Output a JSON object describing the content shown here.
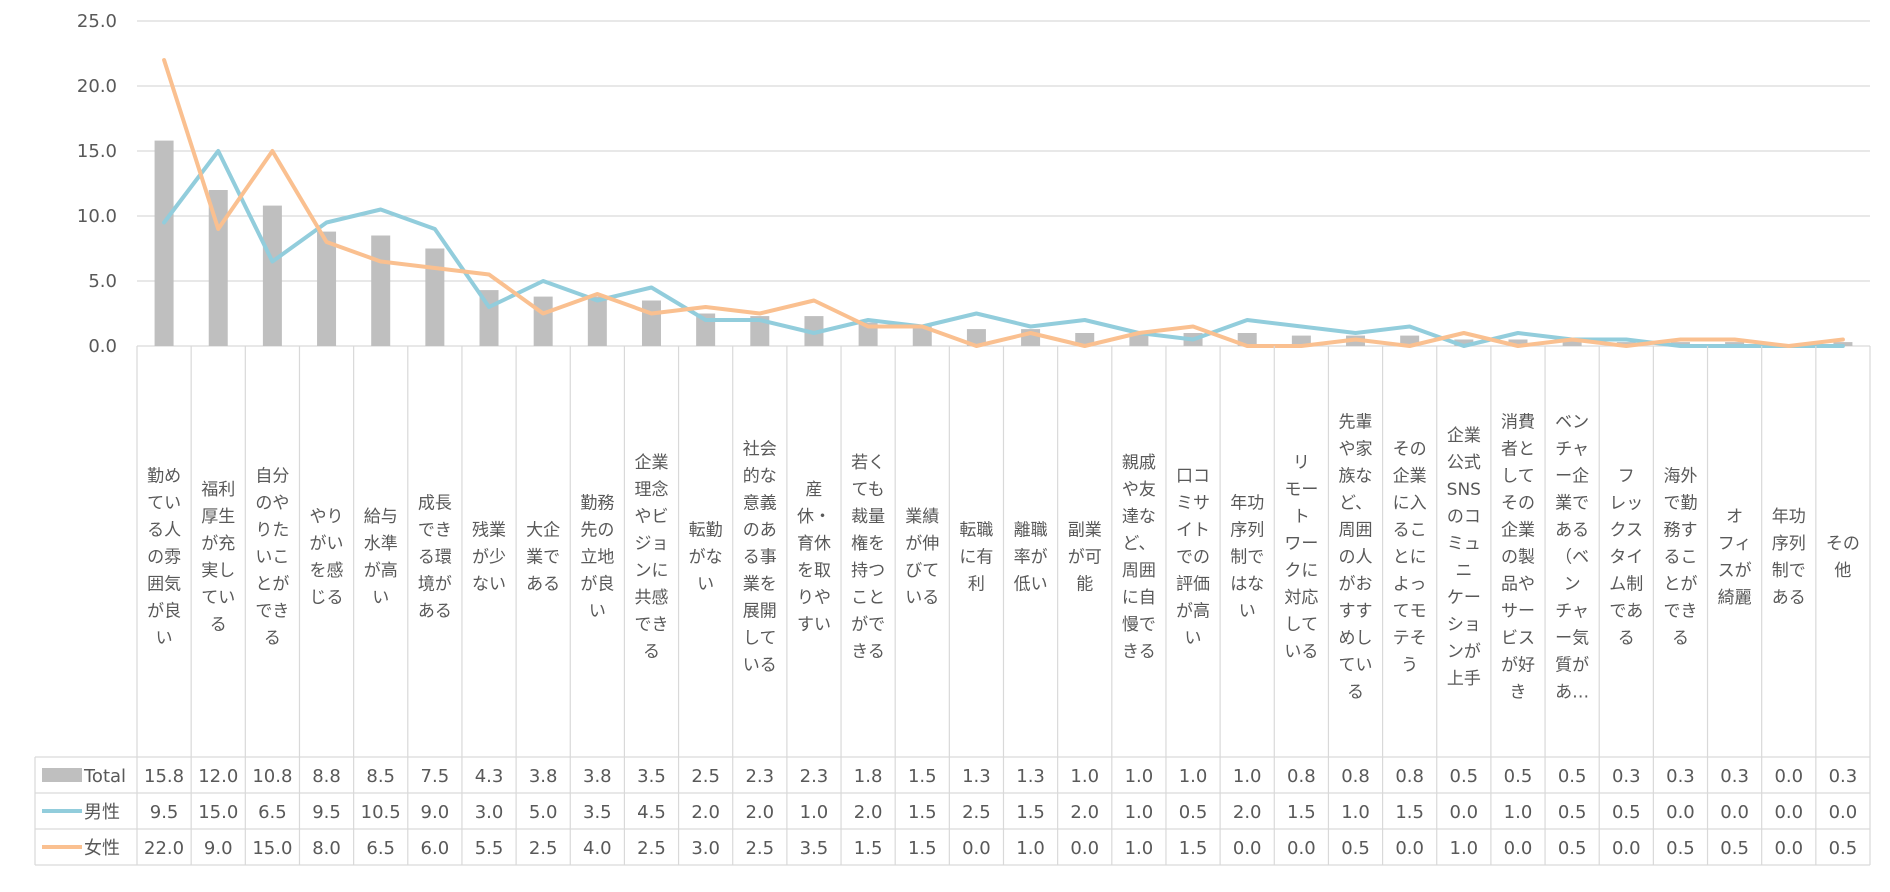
{
  "chart_data": {
    "type": "bar+line",
    "title": "",
    "xlabel": "",
    "ylabel": "",
    "ylim": [
      0,
      25
    ],
    "yticks": [
      "0.0",
      "5.0",
      "10.0",
      "15.0",
      "20.0",
      "25.0"
    ],
    "grid": true,
    "legend_placement": "data-table",
    "categories": [
      "勤めている人の雰囲気が良い",
      "福利厚生が充実している",
      "自分のやりたいことができる",
      "やりがいを感じる",
      "給与水準が高い",
      "成長できる環境がある",
      "残業が少ない",
      "大企業である",
      "勤務先の立地が良い",
      "企業理念やビジョンに共感できる",
      "転勤がない",
      "社会的な意義のある事業を展開している",
      "産休・育休を取りやすい",
      "若くても裁量権を持つことができる",
      "業績が伸びている",
      "転職に有利",
      "離職率が低い",
      "副業が可能",
      "親戚や友達など、周囲に自慢できる",
      "口コミサイトでの評価が高い",
      "年功序列制ではない",
      "リモートワークに対応している",
      "先輩や家族など、周囲の人がおすすめしている",
      "その企業に入ることによってモテそう",
      "企業公式SNSのコミュニケーションが上手",
      "消費者としてその企業の製品やサービスが好き",
      "ベンチャー企業である（ベンチャー気質があ…",
      "フレックスタイム制である",
      "海外で勤務することができる",
      "オフィスが綺麗",
      "年功序列制である",
      "その他"
    ],
    "category_lines": [
      [
        "勤め",
        "てい",
        "る人",
        "の雰",
        "囲気",
        "が良",
        "い"
      ],
      [
        "福利",
        "厚生",
        "が充",
        "実し",
        "てい",
        "る"
      ],
      [
        "自分",
        "のや",
        "りた",
        "いこ",
        "とが",
        "でき",
        "る"
      ],
      [
        "やり",
        "がい",
        "を感",
        "じる"
      ],
      [
        "給与",
        "水準",
        "が高",
        "い"
      ],
      [
        "成長",
        "でき",
        "る環",
        "境が",
        "ある"
      ],
      [
        "残業",
        "が少",
        "ない"
      ],
      [
        "大企",
        "業で",
        "ある"
      ],
      [
        "勤務",
        "先の",
        "立地",
        "が良",
        "い"
      ],
      [
        "企業",
        "理念",
        "やビ",
        "ジョ",
        "ンに",
        "共感",
        "でき",
        "る"
      ],
      [
        "転勤",
        "がな",
        "い"
      ],
      [
        "社会",
        "的な",
        "意義",
        "のあ",
        "る事",
        "業を",
        "展開",
        "して",
        "いる"
      ],
      [
        "産",
        "休・",
        "育休",
        "を取",
        "りや",
        "すい"
      ],
      [
        "若く",
        "ても",
        "裁量",
        "権を",
        "持つ",
        "こと",
        "がで",
        "きる"
      ],
      [
        "業績",
        "が伸",
        "びて",
        "いる"
      ],
      [
        "転職",
        "に有",
        "利"
      ],
      [
        "離職",
        "率が",
        "低い"
      ],
      [
        "副業",
        "が可",
        "能"
      ],
      [
        "親戚",
        "や友",
        "達な",
        "ど、",
        "周囲",
        "に自",
        "慢で",
        "きる"
      ],
      [
        "口コ",
        "ミサ",
        "イト",
        "での",
        "評価",
        "が高",
        "い"
      ],
      [
        "年功",
        "序列",
        "制で",
        "はな",
        "い"
      ],
      [
        "リ",
        "モー",
        "ト",
        "ワー",
        "クに",
        "対応",
        "して",
        "いる"
      ],
      [
        "先輩",
        "や家",
        "族な",
        "ど、",
        "周囲",
        "の人",
        "がお",
        "すす",
        "めし",
        "てい",
        "る"
      ],
      [
        "その",
        "企業",
        "に入",
        "るこ",
        "とに",
        "よっ",
        "てモ",
        "テそ",
        "う"
      ],
      [
        "企業",
        "公式",
        "SNS",
        "のコ",
        "ミュ",
        "ニ",
        "ケー",
        "ショ",
        "ンが",
        "上手"
      ],
      [
        "消費",
        "者と",
        "して",
        "その",
        "企業",
        "の製",
        "品や",
        "サー",
        "ビス",
        "が好",
        "き"
      ],
      [
        "ベン",
        "チャ",
        "ー企",
        "業で",
        "ある",
        "（ベ",
        "ン",
        "チャ",
        "ー気",
        "質が",
        "あ…"
      ],
      [
        "フ",
        "レッ",
        "クス",
        "タイ",
        "ム制",
        "であ",
        "る"
      ],
      [
        "海外",
        "で勤",
        "務す",
        "るこ",
        "とが",
        "でき",
        "る"
      ],
      [
        "オ",
        "フィ",
        "スが",
        "綺麗"
      ],
      [
        "年功",
        "序列",
        "制で",
        "ある"
      ],
      [
        "その",
        "他"
      ]
    ],
    "series": [
      {
        "name": "Total",
        "type": "bar",
        "color": "#bfbfbf",
        "values": [
          15.8,
          12.0,
          10.8,
          8.8,
          8.5,
          7.5,
          4.3,
          3.8,
          3.8,
          3.5,
          2.5,
          2.3,
          2.3,
          1.8,
          1.5,
          1.3,
          1.3,
          1.0,
          1.0,
          1.0,
          1.0,
          0.8,
          0.8,
          0.8,
          0.5,
          0.5,
          0.5,
          0.3,
          0.3,
          0.3,
          0.0,
          0.3
        ],
        "labels": [
          "15.8",
          "12.0",
          "10.8",
          "8.8",
          "8.5",
          "7.5",
          "4.3",
          "3.8",
          "3.8",
          "3.5",
          "2.5",
          "2.3",
          "2.3",
          "1.8",
          "1.5",
          "1.3",
          "1.3",
          "1.0",
          "1.0",
          "1.0",
          "1.0",
          "0.8",
          "0.8",
          "0.8",
          "0.5",
          "0.5",
          "0.5",
          "0.3",
          "0.3",
          "0.3",
          "0.0",
          "0.3"
        ]
      },
      {
        "name": "男性",
        "type": "line",
        "color": "#92cddc",
        "values": [
          9.5,
          15.0,
          6.5,
          9.5,
          10.5,
          9.0,
          3.0,
          5.0,
          3.5,
          4.5,
          2.0,
          2.0,
          1.0,
          2.0,
          1.5,
          2.5,
          1.5,
          2.0,
          1.0,
          0.5,
          2.0,
          1.5,
          1.0,
          1.5,
          0.0,
          1.0,
          0.5,
          0.5,
          0.0,
          0.0,
          0.0,
          0.0
        ],
        "labels": [
          "9.5",
          "15.0",
          "6.5",
          "9.5",
          "10.5",
          "9.0",
          "3.0",
          "5.0",
          "3.5",
          "4.5",
          "2.0",
          "2.0",
          "1.0",
          "2.0",
          "1.5",
          "2.5",
          "1.5",
          "2.0",
          "1.0",
          "0.5",
          "2.0",
          "1.5",
          "1.0",
          "1.5",
          "0.0",
          "1.0",
          "0.5",
          "0.5",
          "0.0",
          "0.0",
          "0.0",
          "0.0"
        ]
      },
      {
        "name": "女性",
        "type": "line",
        "color": "#fac090",
        "values": [
          22.0,
          9.0,
          15.0,
          8.0,
          6.5,
          6.0,
          5.5,
          2.5,
          4.0,
          2.5,
          3.0,
          2.5,
          3.5,
          1.5,
          1.5,
          0.0,
          1.0,
          0.0,
          1.0,
          1.5,
          0.0,
          0.0,
          0.5,
          0.0,
          1.0,
          0.0,
          0.5,
          0.0,
          0.5,
          0.5,
          0.0,
          0.5
        ],
        "labels": [
          "22.0",
          "9.0",
          "15.0",
          "8.0",
          "6.5",
          "6.0",
          "5.5",
          "2.5",
          "4.0",
          "2.5",
          "3.0",
          "2.5",
          "3.5",
          "1.5",
          "1.5",
          "0.0",
          "1.0",
          "0.0",
          "1.0",
          "1.5",
          "0.0",
          "0.0",
          "0.5",
          "0.0",
          "1.0",
          "0.0",
          "0.5",
          "0.0",
          "0.5",
          "0.5",
          "0.0",
          "0.5"
        ]
      }
    ],
    "colors": {
      "gridline": "#d9d9d9",
      "axis_text": "#595959",
      "table_border": "#d9d9d9"
    }
  }
}
